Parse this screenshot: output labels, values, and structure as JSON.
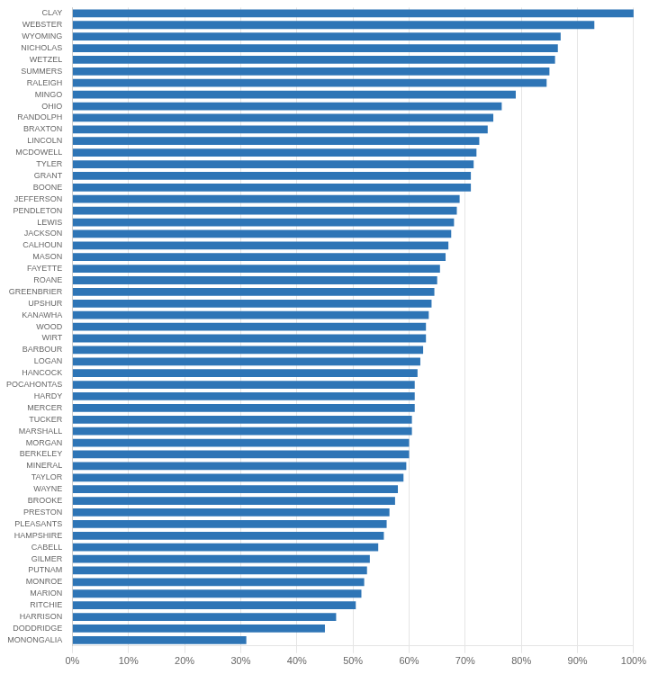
{
  "chart_data": {
    "type": "bar",
    "orientation": "horizontal",
    "categories": [
      "CLAY",
      "WEBSTER",
      "WYOMING",
      "NICHOLAS",
      "WETZEL",
      "SUMMERS",
      "RALEIGH",
      "MINGO",
      "OHIO",
      "RANDOLPH",
      "BRAXTON",
      "LINCOLN",
      "MCDOWELL",
      "TYLER",
      "GRANT",
      "BOONE",
      "JEFFERSON",
      "PENDLETON",
      "LEWIS",
      "JACKSON",
      "CALHOUN",
      "MASON",
      "FAYETTE",
      "ROANE",
      "GREENBRIER",
      "UPSHUR",
      "KANAWHA",
      "WOOD",
      "WIRT",
      "BARBOUR",
      "LOGAN",
      "HANCOCK",
      "POCAHONTAS",
      "HARDY",
      "MERCER",
      "TUCKER",
      "MARSHALL",
      "MORGAN",
      "BERKELEY",
      "MINERAL",
      "TAYLOR",
      "WAYNE",
      "BROOKE",
      "PRESTON",
      "PLEASANTS",
      "HAMPSHIRE",
      "CABELL",
      "GILMER",
      "PUTNAM",
      "MONROE",
      "MARION",
      "RITCHIE",
      "HARRISON",
      "DODDRIDGE",
      "MONONGALIA"
    ],
    "values": [
      100.0,
      93.0,
      87.0,
      86.5,
      86.0,
      85.0,
      84.5,
      79.0,
      76.5,
      75.0,
      74.0,
      72.5,
      72.0,
      71.5,
      71.0,
      71.0,
      69.0,
      68.5,
      68.0,
      67.5,
      67.0,
      66.5,
      65.5,
      65.0,
      64.5,
      64.0,
      63.5,
      63.0,
      63.0,
      62.5,
      62.0,
      61.5,
      61.0,
      61.0,
      61.0,
      60.5,
      60.5,
      60.0,
      60.0,
      59.5,
      59.0,
      58.0,
      57.5,
      56.5,
      56.0,
      55.5,
      54.5,
      53.0,
      52.5,
      52.0,
      51.5,
      50.5,
      47.0,
      45.0,
      31.0
    ],
    "color": "#2E75B6",
    "xlim": [
      0,
      100
    ],
    "xticks": [
      {
        "value": 0,
        "label": "0%"
      },
      {
        "value": 10,
        "label": "10%"
      },
      {
        "value": 20,
        "label": "20%"
      },
      {
        "value": 30,
        "label": "30%"
      },
      {
        "value": 40,
        "label": "40%"
      },
      {
        "value": 50,
        "label": "50%"
      },
      {
        "value": 60,
        "label": "60%"
      },
      {
        "value": 70,
        "label": "70%"
      },
      {
        "value": 80,
        "label": "80%"
      },
      {
        "value": 90,
        "label": "90%"
      },
      {
        "value": 100,
        "label": "100%"
      }
    ],
    "grid": true
  }
}
